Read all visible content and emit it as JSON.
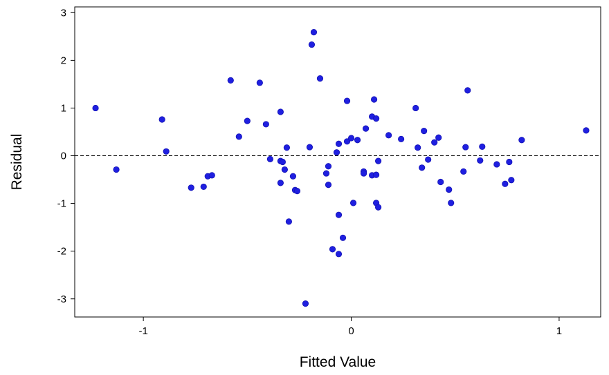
{
  "chart_data": {
    "type": "scatter",
    "title": "",
    "xlabel": "Fitted Value",
    "ylabel": "Residual",
    "xlim": [
      -1.33,
      1.2
    ],
    "ylim": [
      -3.38,
      3.12
    ],
    "xticks": [
      -1,
      0,
      1
    ],
    "yticks": [
      -3,
      -2,
      -1,
      0,
      1,
      2,
      3
    ],
    "reference_line": {
      "y": 0,
      "style": "dashed"
    },
    "point_color": "#1f1fe0",
    "points": [
      [
        -1.23,
        1.0
      ],
      [
        -1.13,
        -0.29
      ],
      [
        -0.91,
        0.76
      ],
      [
        -0.89,
        0.09
      ],
      [
        -0.77,
        -0.67
      ],
      [
        -0.71,
        -0.65
      ],
      [
        -0.69,
        -0.43
      ],
      [
        -0.67,
        -0.41
      ],
      [
        -0.58,
        1.58
      ],
      [
        -0.54,
        0.4
      ],
      [
        -0.5,
        0.73
      ],
      [
        -0.44,
        1.53
      ],
      [
        -0.41,
        0.66
      ],
      [
        -0.39,
        -0.07
      ],
      [
        -0.34,
        0.92
      ],
      [
        -0.34,
        -0.57
      ],
      [
        -0.34,
        -0.11
      ],
      [
        -0.33,
        -0.13
      ],
      [
        -0.32,
        -0.29
      ],
      [
        -0.31,
        0.17
      ],
      [
        -0.3,
        -1.38
      ],
      [
        -0.28,
        -0.43
      ],
      [
        -0.27,
        -0.72
      ],
      [
        -0.26,
        -0.74
      ],
      [
        -0.22,
        -3.1
      ],
      [
        -0.2,
        0.18
      ],
      [
        -0.19,
        2.33
      ],
      [
        -0.18,
        2.59
      ],
      [
        -0.15,
        1.62
      ],
      [
        -0.12,
        -0.37
      ],
      [
        -0.11,
        -0.22
      ],
      [
        -0.11,
        -0.61
      ],
      [
        -0.09,
        -1.96
      ],
      [
        -0.07,
        0.07
      ],
      [
        -0.06,
        0.25
      ],
      [
        -0.06,
        -1.24
      ],
      [
        -0.06,
        -2.06
      ],
      [
        -0.04,
        -1.72
      ],
      [
        -0.02,
        1.15
      ],
      [
        -0.02,
        0.3
      ],
      [
        0.0,
        0.37
      ],
      [
        0.01,
        -0.99
      ],
      [
        0.03,
        0.33
      ],
      [
        0.06,
        -0.33
      ],
      [
        0.06,
        -0.37
      ],
      [
        0.07,
        0.57
      ],
      [
        0.1,
        0.82
      ],
      [
        0.1,
        -0.41
      ],
      [
        0.11,
        1.18
      ],
      [
        0.12,
        0.78
      ],
      [
        0.12,
        -0.4
      ],
      [
        0.12,
        -0.99
      ],
      [
        0.13,
        -1.08
      ],
      [
        0.13,
        -0.11
      ],
      [
        0.18,
        0.43
      ],
      [
        0.24,
        0.35
      ],
      [
        0.31,
        1.0
      ],
      [
        0.32,
        0.17
      ],
      [
        0.34,
        -0.25
      ],
      [
        0.35,
        0.52
      ],
      [
        0.37,
        -0.08
      ],
      [
        0.4,
        0.28
      ],
      [
        0.42,
        0.38
      ],
      [
        0.43,
        -0.55
      ],
      [
        0.47,
        -0.71
      ],
      [
        0.48,
        -0.99
      ],
      [
        0.54,
        -0.33
      ],
      [
        0.55,
        0.18
      ],
      [
        0.56,
        1.37
      ],
      [
        0.62,
        -0.1
      ],
      [
        0.63,
        0.19
      ],
      [
        0.7,
        -0.18
      ],
      [
        0.74,
        -0.59
      ],
      [
        0.76,
        -0.13
      ],
      [
        0.77,
        -0.51
      ],
      [
        0.82,
        0.33
      ],
      [
        1.13,
        0.53
      ]
    ]
  }
}
